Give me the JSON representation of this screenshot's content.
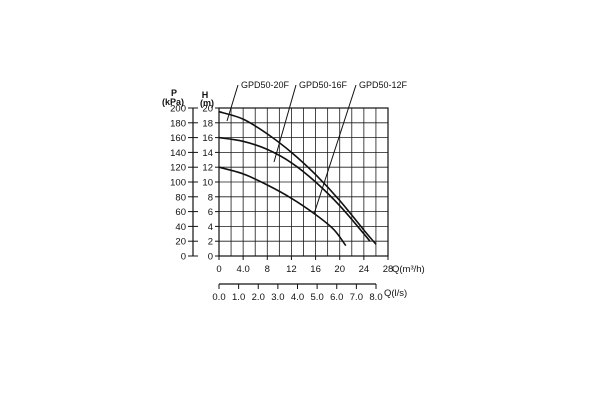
{
  "chart_data": {
    "type": "line",
    "x_axis_primary": {
      "label": "Q(m³/h)",
      "range": [
        0,
        28
      ],
      "ticks": [
        "0",
        "4.0",
        "8",
        "12",
        "16",
        "20",
        "24",
        "28"
      ]
    },
    "x_axis_secondary": {
      "label": "Q(l/s)",
      "range": [
        0,
        8
      ],
      "ticks": [
        "0.0",
        "1.0",
        "2.0",
        "3.0",
        "4.0",
        "5.0",
        "6.0",
        "7.0",
        "8.0"
      ]
    },
    "y_axis_head": {
      "label_line1": "H",
      "label_line2": "(m)",
      "range": [
        0,
        20
      ],
      "ticks": [
        "0",
        "2",
        "4",
        "6",
        "8",
        "10",
        "12",
        "14",
        "16",
        "18",
        "20"
      ]
    },
    "y_axis_pressure": {
      "label_line1": "P",
      "label_line2": "(kPa)",
      "range": [
        0,
        200
      ],
      "ticks": [
        "0",
        "20",
        "40",
        "60",
        "80",
        "100",
        "120",
        "140",
        "160",
        "180",
        "200"
      ]
    },
    "grid": true,
    "series": [
      {
        "name": "GPD50-20F",
        "x": [
          0,
          4,
          8,
          12,
          16,
          20,
          24,
          26
        ],
        "y": [
          19.5,
          18.5,
          16.5,
          14.0,
          11.0,
          7.5,
          3.5,
          1.6
        ]
      },
      {
        "name": "GPD50-16F",
        "x": [
          0,
          4,
          8,
          12,
          16,
          20,
          24,
          25
        ],
        "y": [
          16.0,
          15.5,
          14.4,
          12.6,
          10.0,
          6.8,
          3.0,
          2.0
        ]
      },
      {
        "name": "GPD50-12F",
        "x": [
          0,
          4,
          8,
          12,
          16,
          19,
          21
        ],
        "y": [
          12.0,
          11.1,
          9.6,
          7.8,
          5.6,
          3.6,
          1.4
        ]
      }
    ]
  }
}
